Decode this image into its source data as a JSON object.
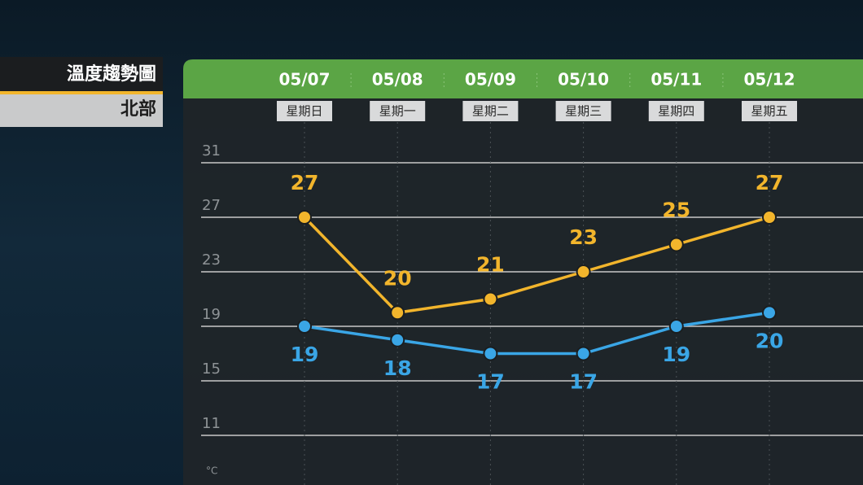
{
  "panel": {
    "title": "溫度趨勢圖",
    "region": "北部"
  },
  "chart_data": {
    "type": "line",
    "categories": [
      "05/07",
      "05/08",
      "05/09",
      "05/10",
      "05/11",
      "05/12"
    ],
    "weekdays": [
      "星期日",
      "星期一",
      "星期二",
      "星期三",
      "星期四",
      "星期五"
    ],
    "series": [
      {
        "color": "#f2b52c",
        "values": [
          27,
          20,
          21,
          23,
          25,
          27
        ]
      },
      {
        "color": "#3aa6e6",
        "values": [
          19,
          18,
          17,
          17,
          19,
          20
        ]
      }
    ],
    "ylabel": "°C",
    "ylim": [
      8,
      35
    ],
    "yticks": [
      11,
      15,
      19,
      23,
      27,
      31
    ],
    "grid": true
  }
}
